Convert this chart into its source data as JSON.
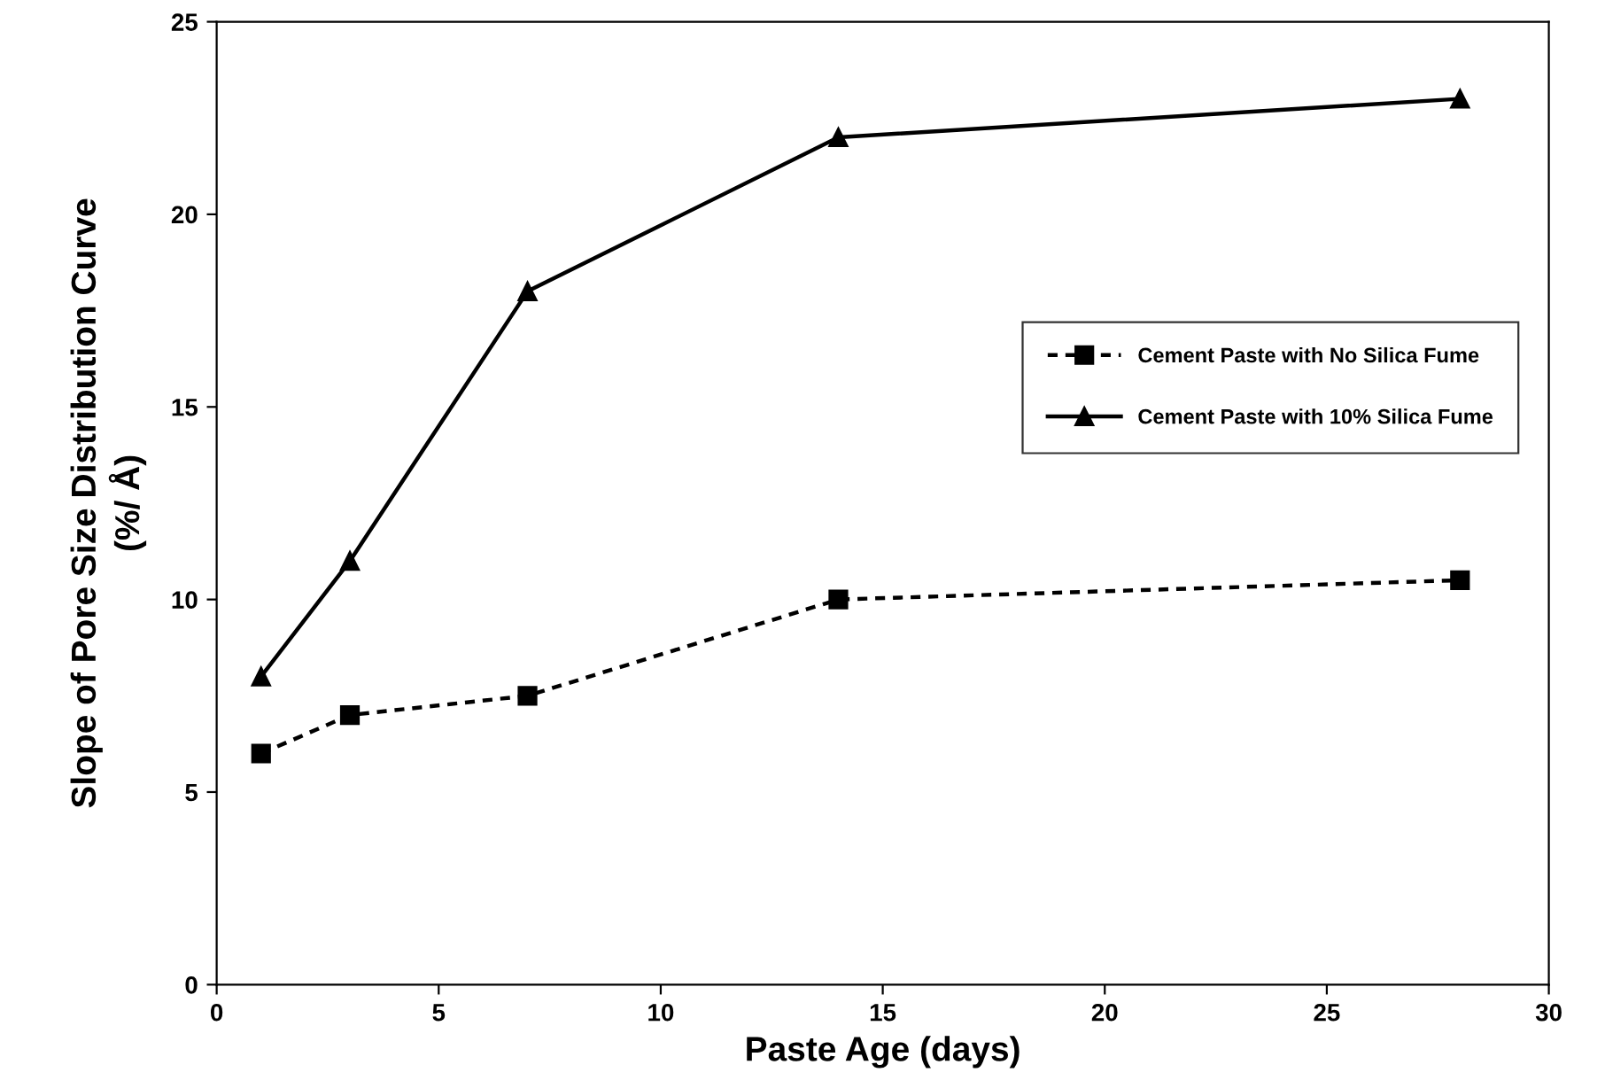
{
  "chart_data": {
    "type": "line",
    "xlabel": "Paste Age (days)",
    "ylabel": "Slope of Pore Size Distribution Curve\n(%/ Å)",
    "x": [
      1,
      3,
      7,
      14,
      28
    ],
    "series": [
      {
        "name": "Cement Paste with No Silica Fume",
        "color": "#000000",
        "values": [
          6,
          7,
          7.5,
          10,
          10.5
        ],
        "marker": "square",
        "line_style": "dotted"
      },
      {
        "name": "Cement Paste with 10% Silica Fume",
        "color": "#000000",
        "values": [
          8,
          11,
          18,
          22,
          23
        ],
        "marker": "triangle",
        "line_style": "solid"
      }
    ],
    "xlim": [
      0,
      30
    ],
    "xticks": [
      0,
      5,
      10,
      15,
      20,
      25,
      30
    ],
    "ylim": [
      0,
      25
    ],
    "yticks": [
      0,
      5,
      10,
      15,
      20,
      25
    ],
    "grid": false,
    "legend": "right"
  }
}
